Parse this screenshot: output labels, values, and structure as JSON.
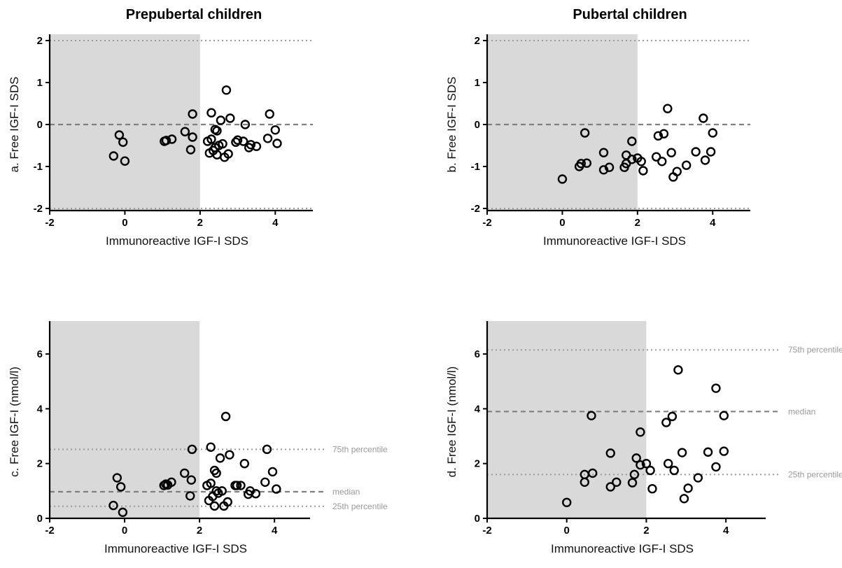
{
  "titles": {
    "left": "Prepubertal children",
    "right": "Pubertal children"
  },
  "chart_data": [
    {
      "id": "a",
      "type": "scatter",
      "ylabel": "a. Free IGF-I SDS",
      "xlabel": "Immunoreactive IGF-I SDS",
      "xlim": [
        -2,
        5
      ],
      "ylim": [
        -2.05,
        2.05
      ],
      "xticks": [
        -2,
        0,
        2,
        4
      ],
      "yticks": [
        -2,
        -1,
        0,
        1,
        2
      ],
      "shaded_region_x": [
        -2,
        2
      ],
      "reference_lines": [
        {
          "y": 2,
          "style": "dotted",
          "label": ""
        },
        {
          "y": 0,
          "style": "dashed",
          "label": ""
        },
        {
          "y": -2,
          "style": "dotted",
          "label": ""
        }
      ],
      "points": [
        [
          -0.3,
          -0.75
        ],
        [
          -0.15,
          -0.25
        ],
        [
          -0.05,
          -0.42
        ],
        [
          0,
          -0.87
        ],
        [
          1.05,
          -0.4
        ],
        [
          1.1,
          -0.38
        ],
        [
          1.25,
          -0.35
        ],
        [
          1.6,
          -0.17
        ],
        [
          1.75,
          -0.6
        ],
        [
          1.8,
          -0.3
        ],
        [
          1.8,
          0.25
        ],
        [
          2.2,
          -0.4
        ],
        [
          2.25,
          -0.68
        ],
        [
          2.3,
          -0.35
        ],
        [
          2.3,
          0.28
        ],
        [
          2.35,
          -0.62
        ],
        [
          2.4,
          -0.12
        ],
        [
          2.4,
          -0.55
        ],
        [
          2.45,
          -0.72
        ],
        [
          2.45,
          -0.15
        ],
        [
          2.5,
          -0.5
        ],
        [
          2.55,
          0.1
        ],
        [
          2.6,
          -0.46
        ],
        [
          2.65,
          -0.78
        ],
        [
          2.7,
          0.82
        ],
        [
          2.75,
          -0.7
        ],
        [
          2.8,
          0.15
        ],
        [
          2.95,
          -0.42
        ],
        [
          3.0,
          -0.37
        ],
        [
          3.15,
          -0.4
        ],
        [
          3.2,
          0.0
        ],
        [
          3.3,
          -0.55
        ],
        [
          3.35,
          -0.48
        ],
        [
          3.5,
          -0.52
        ],
        [
          3.8,
          -0.33
        ],
        [
          3.85,
          0.25
        ],
        [
          4.0,
          -0.13
        ],
        [
          4.05,
          -0.45
        ]
      ]
    },
    {
      "id": "b",
      "type": "scatter",
      "ylabel": "b. Free IGF-I SDS",
      "xlabel": "Immunoreactive IGF-I SDS",
      "xlim": [
        -2,
        5
      ],
      "ylim": [
        -2.05,
        2.05
      ],
      "xticks": [
        -2,
        0,
        2,
        4
      ],
      "yticks": [
        -2,
        -1,
        0,
        1,
        2
      ],
      "shaded_region_x": [
        -2,
        2
      ],
      "reference_lines": [
        {
          "y": 2,
          "style": "dotted",
          "label": ""
        },
        {
          "y": 0,
          "style": "dashed",
          "label": ""
        },
        {
          "y": -2,
          "style": "dotted",
          "label": ""
        }
      ],
      "points": [
        [
          0,
          -1.3
        ],
        [
          0.45,
          -1.0
        ],
        [
          0.5,
          -0.93
        ],
        [
          0.6,
          -0.2
        ],
        [
          0.65,
          -0.92
        ],
        [
          1.1,
          -0.67
        ],
        [
          1.1,
          -1.08
        ],
        [
          1.25,
          -1.02
        ],
        [
          1.65,
          -1.02
        ],
        [
          1.7,
          -0.93
        ],
        [
          1.7,
          -0.73
        ],
        [
          1.85,
          -0.4
        ],
        [
          1.85,
          -0.83
        ],
        [
          2.0,
          -0.8
        ],
        [
          2.1,
          -0.88
        ],
        [
          2.15,
          -1.1
        ],
        [
          2.5,
          -0.77
        ],
        [
          2.55,
          -0.27
        ],
        [
          2.65,
          -0.88
        ],
        [
          2.7,
          -0.22
        ],
        [
          2.8,
          0.38
        ],
        [
          2.9,
          -0.67
        ],
        [
          2.95,
          -1.25
        ],
        [
          3.05,
          -1.12
        ],
        [
          3.3,
          -0.97
        ],
        [
          3.55,
          -0.65
        ],
        [
          3.75,
          0.15
        ],
        [
          3.8,
          -0.85
        ],
        [
          3.95,
          -0.65
        ],
        [
          4.0,
          -0.2
        ]
      ]
    },
    {
      "id": "c",
      "type": "scatter",
      "ylabel": "c. Free IGF-I (nmol/l)",
      "xlabel": "Immunoreactive IGF-I SDS",
      "xlim": [
        -2,
        4.95
      ],
      "ylim": [
        0,
        7.05
      ],
      "xticks": [
        -2,
        0,
        2,
        4
      ],
      "yticks": [
        0,
        2,
        4,
        6
      ],
      "shaded_region_x": [
        -2,
        2
      ],
      "reference_lines": [
        {
          "y": 2.52,
          "style": "dotted",
          "label": "75th percentile"
        },
        {
          "y": 0.97,
          "style": "dashed",
          "label": "median"
        },
        {
          "y": 0.44,
          "style": "dotted",
          "label": "25th percentile"
        }
      ],
      "points": [
        [
          -0.3,
          0.47
        ],
        [
          -0.2,
          1.48
        ],
        [
          -0.1,
          1.15
        ],
        [
          -0.05,
          0.22
        ],
        [
          1.05,
          1.2
        ],
        [
          1.1,
          1.25
        ],
        [
          1.15,
          1.22
        ],
        [
          1.25,
          1.32
        ],
        [
          1.6,
          1.65
        ],
        [
          1.75,
          0.82
        ],
        [
          1.78,
          1.4
        ],
        [
          1.8,
          2.52
        ],
        [
          2.2,
          1.2
        ],
        [
          2.25,
          0.65
        ],
        [
          2.3,
          1.28
        ],
        [
          2.3,
          2.6
        ],
        [
          2.35,
          0.8
        ],
        [
          2.4,
          1.75
        ],
        [
          2.4,
          0.45
        ],
        [
          2.45,
          1.0
        ],
        [
          2.45,
          1.65
        ],
        [
          2.5,
          0.92
        ],
        [
          2.55,
          2.2
        ],
        [
          2.6,
          1.0
        ],
        [
          2.65,
          0.45
        ],
        [
          2.7,
          3.72
        ],
        [
          2.75,
          0.6
        ],
        [
          2.8,
          2.32
        ],
        [
          2.95,
          1.2
        ],
        [
          3.0,
          1.2
        ],
        [
          3.1,
          1.2
        ],
        [
          3.2,
          2.0
        ],
        [
          3.3,
          0.88
        ],
        [
          3.35,
          1.0
        ],
        [
          3.5,
          0.9
        ],
        [
          3.75,
          1.32
        ],
        [
          3.8,
          2.52
        ],
        [
          3.95,
          1.7
        ],
        [
          4.05,
          1.07
        ]
      ]
    },
    {
      "id": "d",
      "type": "scatter",
      "ylabel": "d. Free IGF-I (nmol/l)",
      "xlabel": "Immunoreactive IGF-I SDS",
      "xlim": [
        -2,
        5
      ],
      "ylim": [
        0,
        7.05
      ],
      "xticks": [
        -2,
        0,
        2,
        4
      ],
      "yticks": [
        0,
        2,
        4,
        6
      ],
      "shaded_region_x": [
        -2,
        2
      ],
      "reference_lines": [
        {
          "y": 6.15,
          "style": "dotted",
          "label": "75th percentile"
        },
        {
          "y": 3.9,
          "style": "dashed",
          "label": "median"
        },
        {
          "y": 1.6,
          "style": "dotted",
          "label": "25th percentile"
        }
      ],
      "points": [
        [
          0,
          0.58
        ],
        [
          0.45,
          1.6
        ],
        [
          0.45,
          1.32
        ],
        [
          0.65,
          1.65
        ],
        [
          0.62,
          3.75
        ],
        [
          1.1,
          1.15
        ],
        [
          1.1,
          2.38
        ],
        [
          1.25,
          1.32
        ],
        [
          1.65,
          1.3
        ],
        [
          1.7,
          1.6
        ],
        [
          1.75,
          2.2
        ],
        [
          1.85,
          3.15
        ],
        [
          1.85,
          1.95
        ],
        [
          2.0,
          2.0
        ],
        [
          2.1,
          1.75
        ],
        [
          2.15,
          1.08
        ],
        [
          2.5,
          3.5
        ],
        [
          2.55,
          2.0
        ],
        [
          2.65,
          3.72
        ],
        [
          2.7,
          1.75
        ],
        [
          2.8,
          5.42
        ],
        [
          2.9,
          2.4
        ],
        [
          2.95,
          0.72
        ],
        [
          3.05,
          1.1
        ],
        [
          3.3,
          1.48
        ],
        [
          3.55,
          2.42
        ],
        [
          3.75,
          4.75
        ],
        [
          3.75,
          1.88
        ],
        [
          3.95,
          3.75
        ],
        [
          3.95,
          2.45
        ]
      ]
    }
  ]
}
